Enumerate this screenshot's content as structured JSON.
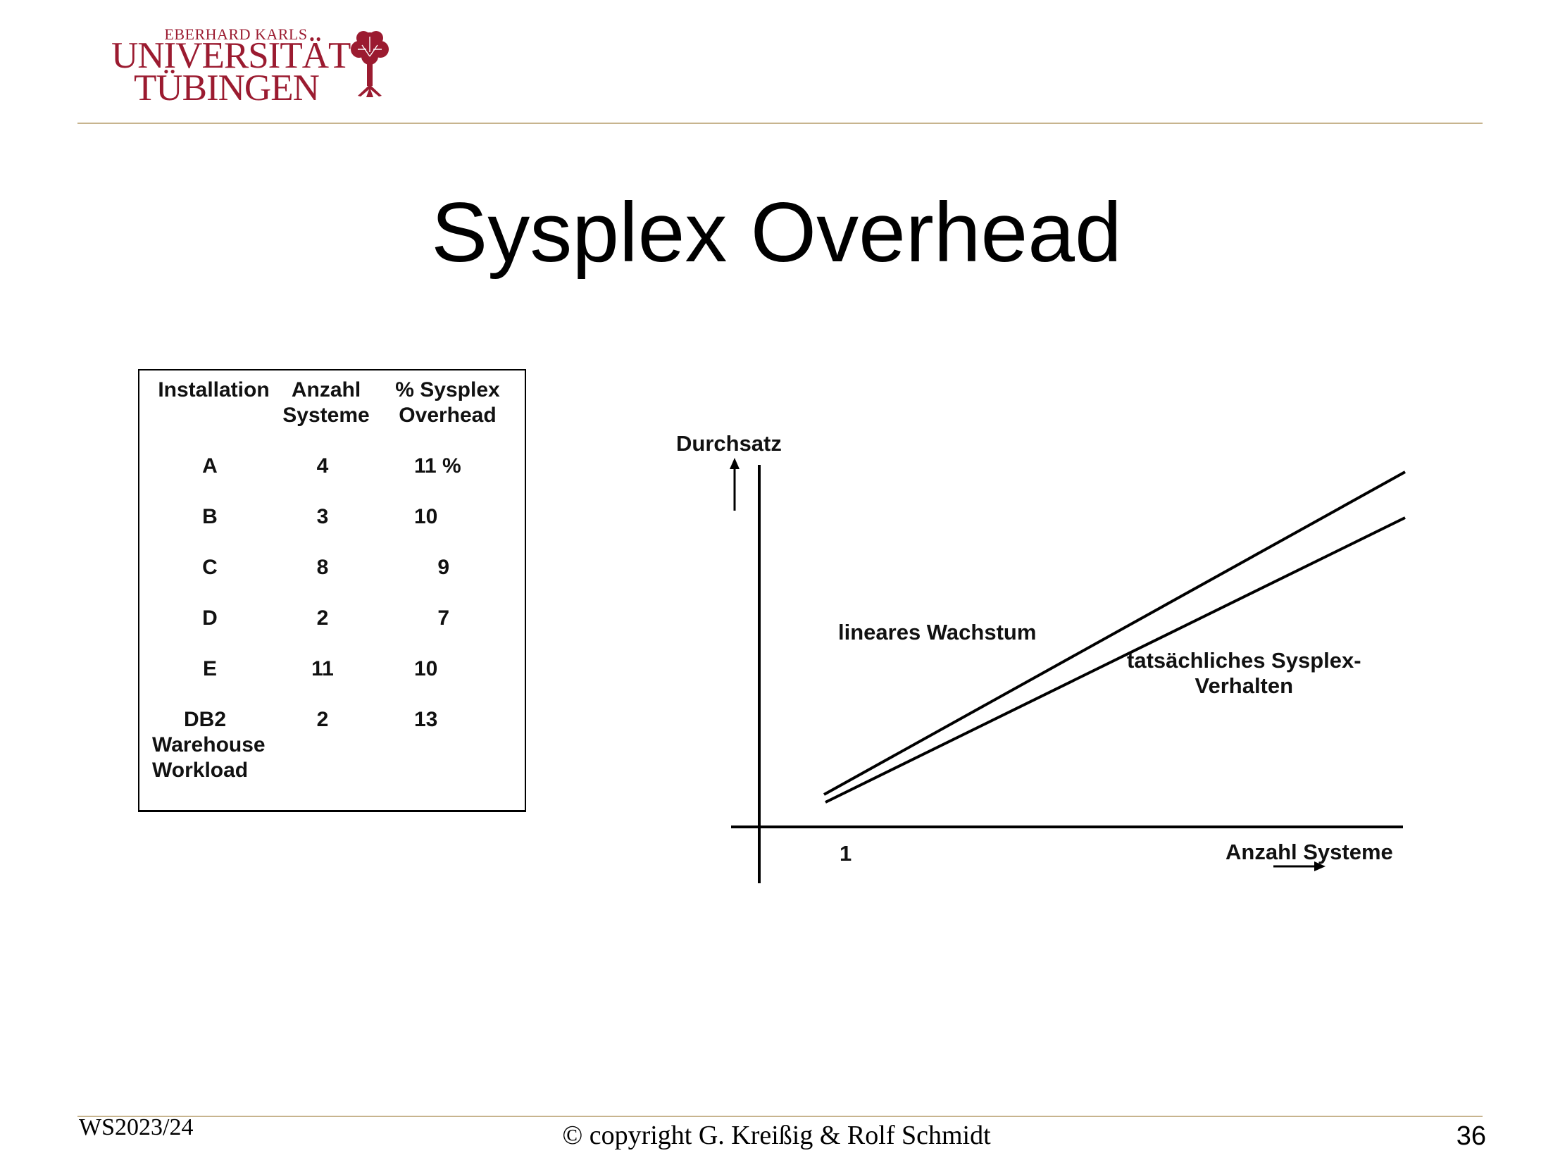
{
  "header": {
    "logo": {
      "line1": "EBERHARD KARLS",
      "line2": "UNIVERSITÄT",
      "line3": "TÜBINGEN",
      "color": "#9b1b30",
      "icon": "tree-icon"
    },
    "rule_color": "#c7b48e"
  },
  "slide": {
    "title": "Sysplex Overhead"
  },
  "table": {
    "headers": [
      [
        "Installation"
      ],
      [
        "Anzahl",
        "Systeme"
      ],
      [
        "% Sysplex",
        "Overhead"
      ]
    ],
    "rows": [
      {
        "installation": [
          "A"
        ],
        "anzahl": "4",
        "overhead": "11 %"
      },
      {
        "installation": [
          "B"
        ],
        "anzahl": "3",
        "overhead": "10"
      },
      {
        "installation": [
          "C"
        ],
        "anzahl": "8",
        "overhead": "9"
      },
      {
        "installation": [
          "D"
        ],
        "anzahl": "2",
        "overhead": "7"
      },
      {
        "installation": [
          "E"
        ],
        "anzahl": "11",
        "overhead": "10"
      },
      {
        "installation": [
          "DB2",
          "Warehouse",
          "Workload"
        ],
        "anzahl": "2",
        "overhead": "13"
      }
    ]
  },
  "diagram": {
    "y_axis_label": "Durchsatz",
    "x_axis_label": "Anzahl Systeme",
    "x_tick": "1",
    "line1_label": "lineares Wachstum",
    "line2_label": [
      "tatsächliches Sysplex-",
      "Verhalten"
    ]
  },
  "footer": {
    "semester": "WS2023/24",
    "copyright": "© copyright G. Kreißig & Rolf Schmidt",
    "page_number": "36"
  }
}
